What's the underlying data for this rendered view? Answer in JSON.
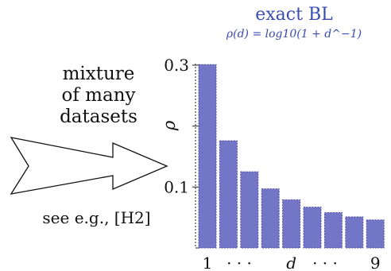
{
  "left_text": {
    "lines": [
      "mixture",
      "of many",
      "datasets"
    ]
  },
  "citation": "see e.g., [H2]",
  "header": {
    "title": "exact BL",
    "formula": "ρ(d) = log10(1 + d^−1)"
  },
  "colors": {
    "bar_fill": "#7376c7",
    "bar_stroke": "#4d4f9e",
    "title": "#3a4bb0",
    "arrow": "#111111"
  },
  "icons": {
    "arrow": "right-arrow-icon"
  },
  "chart_data": {
    "type": "bar",
    "title": "exact BL",
    "subtitle": "ρ(d) = log10(1 + d^−1)",
    "ylabel": "ρ",
    "xlabel": "d",
    "categories": [
      "1",
      "2",
      "3",
      "4",
      "5",
      "6",
      "7",
      "8",
      "9"
    ],
    "values": [
      0.301,
      0.176,
      0.125,
      0.097,
      0.079,
      0.067,
      0.058,
      0.051,
      0.046
    ],
    "ylim": [
      0,
      0.3
    ],
    "yticks": [
      0.1,
      0.2,
      0.3
    ],
    "ytick_labels": [
      "0.1",
      "",
      "0.3"
    ],
    "xtick_labels": [
      "1",
      "· · ·",
      "d",
      "· · ·",
      "9"
    ],
    "grid": false,
    "legend": "none"
  }
}
